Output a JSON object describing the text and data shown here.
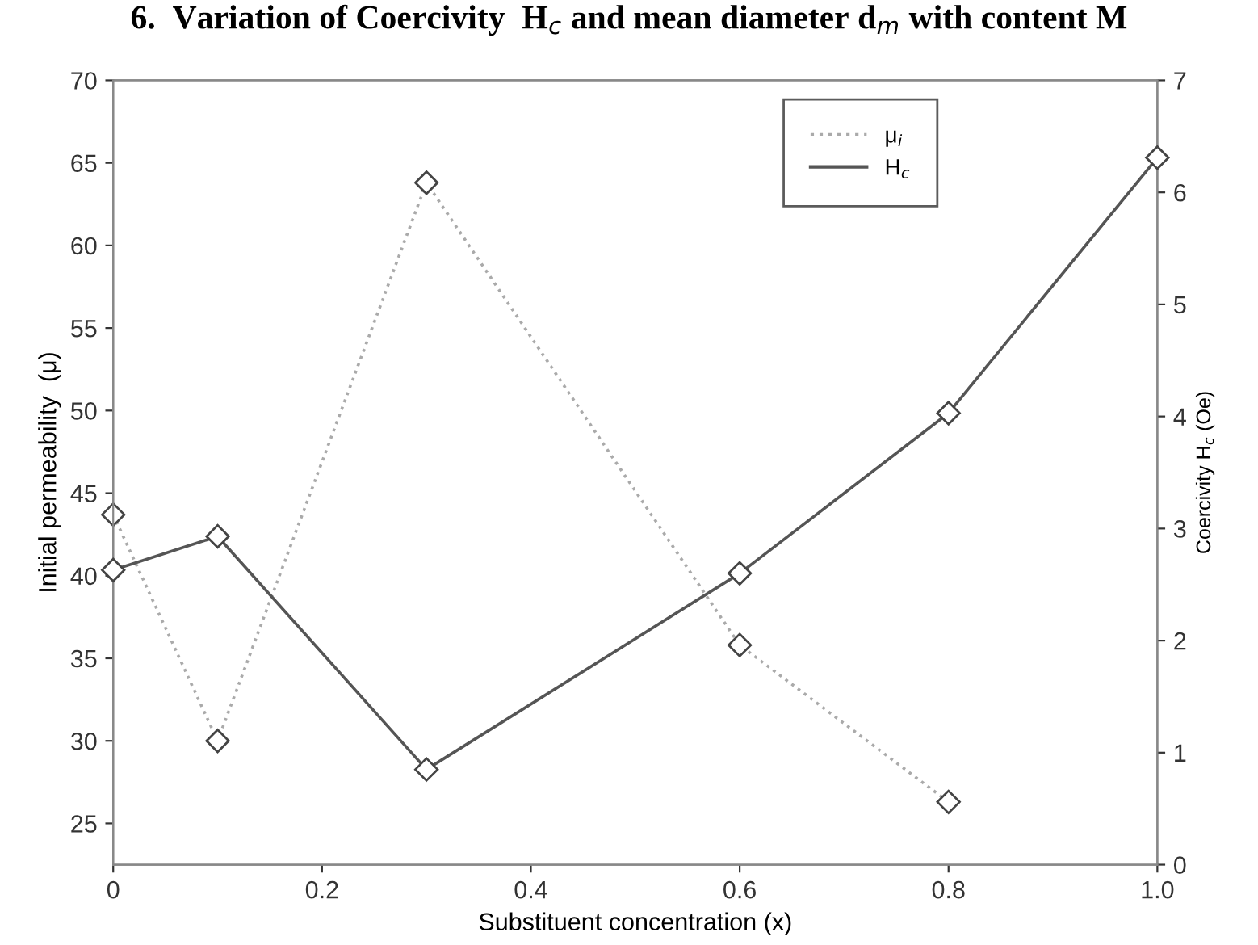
{
  "chart_data": {
    "type": "line",
    "title": "6.  Variation of Coercivity  H$_{c}$ and mean diameter d$_{m}$ with content M",
    "xlabel": "Substituent concentration (x)",
    "ylabel": "Initial permeability  (μ)",
    "y2label": "Coercivity H$_{c}$ (Oe)",
    "x": [
      0,
      0.1,
      0.3,
      0.6,
      0.8,
      1.0
    ],
    "series": [
      {
        "name": "μ$_{i}$",
        "color": "#aaaaaa",
        "line_style": "dotted",
        "values": [
          43.7,
          30.0,
          63.8,
          35.8,
          26.3,
          null
        ]
      },
      {
        "name": "H$_{c}$",
        "color": "#555555",
        "line_style": "solid",
        "axis": "y2",
        "values": [
          2.63,
          2.93,
          0.85,
          2.6,
          4.03,
          6.31
        ]
      }
    ],
    "xlim": [
      0,
      1
    ],
    "xticks": [
      0,
      0.2,
      0.4,
      0.6,
      0.8,
      {
        "value": 1,
        "label": "1.0"
      }
    ],
    "ylim": [
      22.5,
      70
    ],
    "yticks": [
      25,
      30,
      35,
      40,
      45,
      50,
      55,
      60,
      65,
      70
    ],
    "y2lim": [
      0,
      7
    ],
    "y2ticks": [
      0,
      1,
      2,
      3,
      4,
      5,
      6,
      7
    ],
    "marker": "diamond",
    "grid": false,
    "legend": "top right"
  }
}
